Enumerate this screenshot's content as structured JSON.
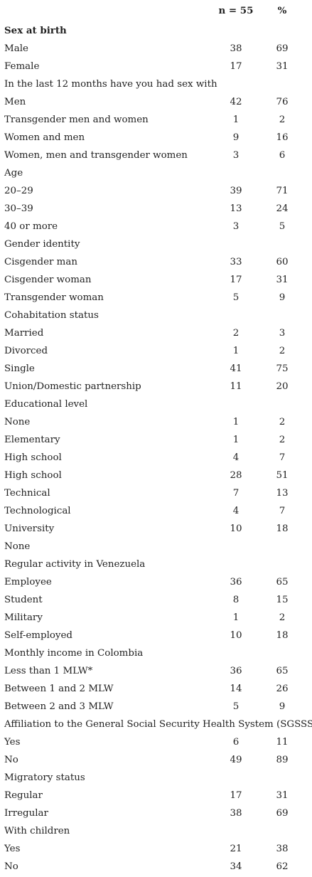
{
  "header": {
    "label": "",
    "n": "n = 55",
    "pct": "%"
  },
  "rows": [
    {
      "type": "section",
      "label": "Sex at birth",
      "bold": true
    },
    {
      "type": "item",
      "label": "Male",
      "n": "38",
      "pct": "69"
    },
    {
      "type": "item",
      "label": "Female",
      "n": "17",
      "pct": "31"
    },
    {
      "type": "section",
      "label": "In the last 12 months have you had sex with"
    },
    {
      "type": "item",
      "label": "Men",
      "n": "42",
      "pct": "76"
    },
    {
      "type": "item",
      "label": "Transgender men and women",
      "n": "1",
      "pct": "2"
    },
    {
      "type": "item",
      "label": "Women and men",
      "n": "9",
      "pct": "16"
    },
    {
      "type": "item",
      "label": "Women, men and transgender women",
      "n": "3",
      "pct": "6"
    },
    {
      "type": "section",
      "label": "Age"
    },
    {
      "type": "item",
      "label": "20–29",
      "n": "39",
      "pct": "71"
    },
    {
      "type": "item",
      "label": "30–39",
      "n": "13",
      "pct": "24"
    },
    {
      "type": "item",
      "label": "40 or more",
      "n": "3",
      "pct": "5"
    },
    {
      "type": "section",
      "label": "Gender identity"
    },
    {
      "type": "item",
      "label": "Cisgender man",
      "n": "33",
      "pct": "60"
    },
    {
      "type": "item",
      "label": "Cisgender woman",
      "n": "17",
      "pct": "31"
    },
    {
      "type": "item",
      "label": "Transgender woman",
      "n": "5",
      "pct": "9"
    },
    {
      "type": "section",
      "label": "Cohabitation status"
    },
    {
      "type": "item",
      "label": "Married",
      "n": "2",
      "pct": "3"
    },
    {
      "type": "item",
      "label": "Divorced",
      "n": "1",
      "pct": "2"
    },
    {
      "type": "item",
      "label": "Single",
      "n": "41",
      "pct": "75"
    },
    {
      "type": "item",
      "label": "Union/Domestic partnership",
      "n": "11",
      "pct": "20"
    },
    {
      "type": "section",
      "label": "Educational level"
    },
    {
      "type": "item",
      "label": "None",
      "n": "1",
      "pct": "2"
    },
    {
      "type": "item",
      "label": "Elementary",
      "n": "1",
      "pct": "2"
    },
    {
      "type": "item",
      "label": "High school",
      "n": "4",
      "pct": "7"
    },
    {
      "type": "item",
      "label": "High school",
      "n": "28",
      "pct": "51"
    },
    {
      "type": "item",
      "label": "Technical",
      "n": "7",
      "pct": "13"
    },
    {
      "type": "item",
      "label": "Technological",
      "n": "4",
      "pct": "7"
    },
    {
      "type": "item",
      "label": "University",
      "n": "10",
      "pct": "18"
    },
    {
      "type": "section",
      "label": "None"
    },
    {
      "type": "section",
      "label": "Regular activity in Venezuela"
    },
    {
      "type": "item",
      "label": "Employee",
      "n": "36",
      "pct": "65"
    },
    {
      "type": "item",
      "label": "Student",
      "n": "8",
      "pct": "15"
    },
    {
      "type": "item",
      "label": "Military",
      "n": "1",
      "pct": "2"
    },
    {
      "type": "item",
      "label": "Self-employed",
      "n": "10",
      "pct": "18"
    },
    {
      "type": "section",
      "label": "Monthly income in Colombia"
    },
    {
      "type": "item",
      "label": "Less than 1 MLW*",
      "n": "36",
      "pct": "65"
    },
    {
      "type": "item",
      "label": "Between 1 and 2 MLW",
      "n": "14",
      "pct": "26"
    },
    {
      "type": "item",
      "label": "Between 2 and 3 MLW",
      "n": "5",
      "pct": "9"
    },
    {
      "type": "section",
      "label": "Affiliation to the General Social Security Health System (SGSSS)"
    },
    {
      "type": "item",
      "label": "Yes",
      "n": "6",
      "pct": "11"
    },
    {
      "type": "item",
      "label": "No",
      "n": "49",
      "pct": "89"
    },
    {
      "type": "section",
      "label": "Migratory status"
    },
    {
      "type": "item",
      "label": "Regular",
      "n": "17",
      "pct": "31"
    },
    {
      "type": "item",
      "label": "Irregular",
      "n": "38",
      "pct": "69"
    },
    {
      "type": "section",
      "label": "With children"
    },
    {
      "type": "item",
      "label": "Yes",
      "n": "21",
      "pct": "38"
    },
    {
      "type": "item",
      "label": "No",
      "n": "34",
      "pct": "62"
    }
  ]
}
